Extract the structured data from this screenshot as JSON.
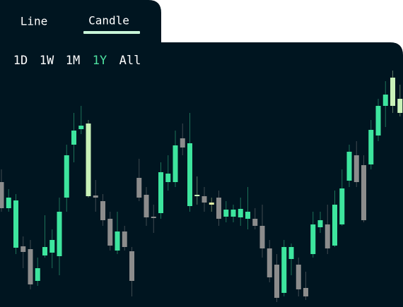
{
  "tabs": [
    "Line",
    "Candle"
  ],
  "ranges": [
    "1D",
    "1W",
    "1M",
    "1Y",
    "All"
  ],
  "chart_data": {
    "type": "candlestick",
    "ylim": [
      0,
      375
    ],
    "open": [
      177,
      140,
      84,
      86,
      82,
      37,
      73,
      77,
      72,
      155,
      230,
      252,
      157,
      158,
      150,
      125,
      80,
      107,
      79,
      183,
      159,
      128,
      133,
      177,
      177,
      239,
      143,
      157,
      157,
      145,
      155,
      128,
      128,
      127,
      125,
      125,
      115,
      83,
      60,
      20,
      68,
      60,
      27,
      75,
      113,
      117,
      87,
      117,
      179,
      215,
      201,
      202,
      243,
      285,
      285,
      275
    ],
    "high": [
      195,
      167,
      160,
      100,
      95,
      70,
      130,
      110,
      155,
      230,
      275,
      285,
      265,
      180,
      160,
      135,
      135,
      115,
      85,
      210,
      170,
      145,
      205,
      215,
      250,
      260,
      275,
      185,
      170,
      155,
      165,
      150,
      145,
      155,
      170,
      140,
      145,
      95,
      75,
      95,
      90,
      70,
      50,
      135,
      135,
      145,
      165,
      195,
      230,
      235,
      215,
      265,
      295,
      320,
      335,
      315
    ],
    "low": [
      135,
      135,
      75,
      55,
      25,
      30,
      70,
      55,
      45,
      135,
      205,
      245,
      155,
      135,
      115,
      80,
      75,
      80,
      15,
      150,
      115,
      105,
      125,
      165,
      170,
      215,
      135,
      145,
      135,
      135,
      115,
      120,
      120,
      115,
      110,
      110,
      70,
      35,
      7,
      15,
      45,
      15,
      10,
      70,
      105,
      75,
      85,
      115,
      170,
      170,
      120,
      195,
      235,
      255,
      275,
      270
    ],
    "close": [
      140,
      155,
      151,
      78,
      32,
      55,
      85,
      95,
      135,
      215,
      250,
      257,
      260,
      155,
      123,
      87,
      107,
      85,
      37,
      155,
      127,
      126,
      191,
      189,
      229,
      226,
      232,
      159,
      148,
      148,
      125,
      138,
      138,
      139,
      135,
      115,
      83,
      42,
      13,
      85,
      85,
      25,
      15,
      117,
      123,
      83,
      145,
      168,
      220,
      177,
      123,
      251,
      285,
      301,
      325,
      295
    ],
    "colors": [
      "#8c8c8c",
      "#3de59e",
      "#3de59e",
      "#8c8c8c",
      "#8c8c8c",
      "#3de59e",
      "#3de59e",
      "#3de59e",
      "#3de59e",
      "#3de59e",
      "#3de59e",
      "#3de59e",
      "#c9f2b8",
      "#8c8c8c",
      "#8c8c8c",
      "#8c8c8c",
      "#3de59e",
      "#8c8c8c",
      "#8c8c8c",
      "#8c8c8c",
      "#8c8c8c",
      "#8c8c8c",
      "#3de59e",
      "#3de59e",
      "#3de59e",
      "#8c8c8c",
      "#3de59e",
      "#c9f2b8",
      "#8c8c8c",
      "#e3f4a6",
      "#8c8c8c",
      "#3de59e",
      "#3de59e",
      "#3de59e",
      "#3de59e",
      "#8c8c8c",
      "#8c8c8c",
      "#8c8c8c",
      "#8c8c8c",
      "#3de59e",
      "#3de59e",
      "#8c8c8c",
      "#8c8c8c",
      "#3de59e",
      "#3de59e",
      "#8c8c8c",
      "#3de59e",
      "#3de59e",
      "#3de59e",
      "#8c8c8c",
      "#8c8c8c",
      "#3de59e",
      "#3de59e",
      "#3de59e",
      "#c9f2b8",
      "#c9f2b8"
    ]
  }
}
